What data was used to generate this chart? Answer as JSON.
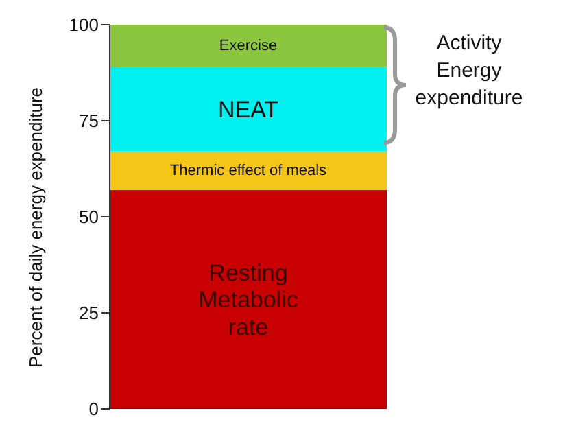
{
  "chart_data": {
    "type": "bar",
    "stacked": true,
    "ylabel": "Percent of daily energy expenditure",
    "categories": [
      null
    ],
    "series": [
      {
        "name": "Resting Metabolic rate",
        "color": "#c80000",
        "values": [
          57
        ]
      },
      {
        "name": "Thermic effect of meals",
        "color": "#f5c518",
        "values": [
          10
        ]
      },
      {
        "name": "NEAT",
        "color": "#00f0f0",
        "values": [
          22
        ]
      },
      {
        "name": "Exercise",
        "color": "#8cc63f",
        "values": [
          11
        ]
      }
    ],
    "ylim": [
      0,
      100
    ],
    "yticks": [
      0,
      25,
      50,
      75,
      100
    ],
    "grid": false,
    "legend": false,
    "tick_labels": "y",
    "annotations": [
      "Activity Energy expenditure"
    ]
  }
}
